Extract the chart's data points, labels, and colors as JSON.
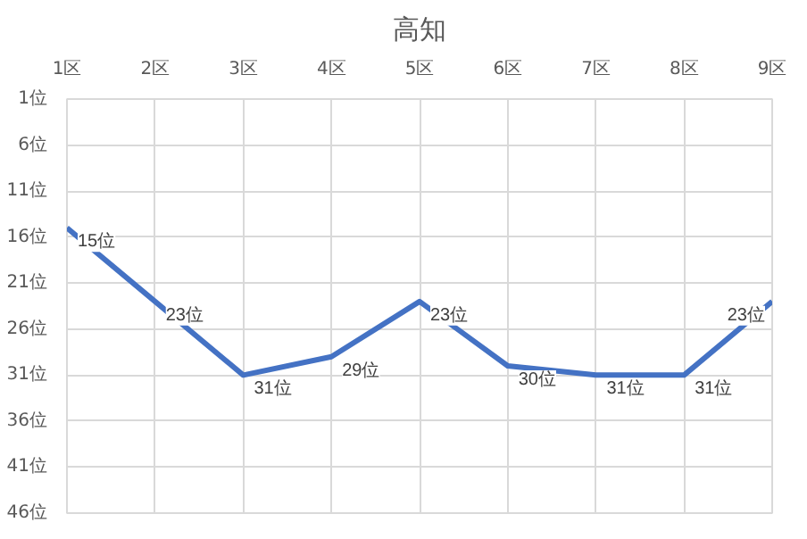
{
  "chart_data": {
    "type": "line",
    "title": "高知",
    "categories": [
      "1区",
      "2区",
      "3区",
      "4区",
      "5区",
      "6区",
      "7区",
      "8区",
      "9区"
    ],
    "series": [
      {
        "color": "#4472c4",
        "values": [
          15,
          23,
          31,
          29,
          23,
          30,
          31,
          31,
          23
        ],
        "value_labels": [
          "15位",
          "23位",
          "31位",
          "29位",
          "23位",
          "30位",
          "31位",
          "31位",
          "23位"
        ]
      }
    ],
    "ylim": [
      46,
      1
    ],
    "yticks": [
      {
        "value": 1,
        "label": "1位"
      },
      {
        "value": 6,
        "label": "6位"
      },
      {
        "value": 11,
        "label": "11位"
      },
      {
        "value": 16,
        "label": "16位"
      },
      {
        "value": 21,
        "label": "21位"
      },
      {
        "value": 26,
        "label": "26位"
      },
      {
        "value": 31,
        "label": "31位"
      },
      {
        "value": 36,
        "label": "36位"
      },
      {
        "value": 41,
        "label": "41位"
      },
      {
        "value": 46,
        "label": "46位"
      }
    ],
    "grid": true,
    "marker": "none",
    "line_style": "solid"
  }
}
